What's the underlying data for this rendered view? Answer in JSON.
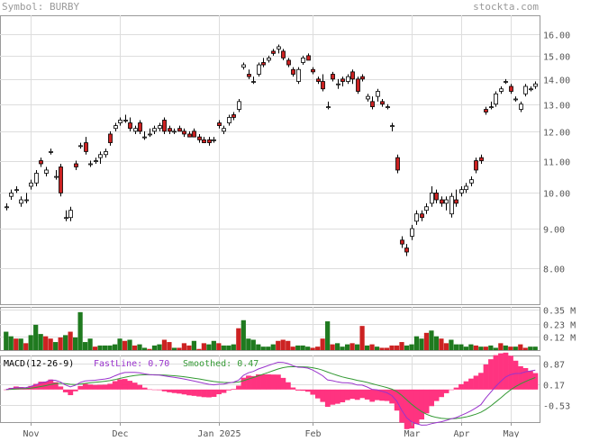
{
  "header": {
    "symbol_text": "Symbol: BURBY",
    "brand_text": "stockta.com"
  },
  "colors": {
    "header_text": "#999999",
    "frame": "#999999",
    "grid": "#dddddd",
    "up_fill": "#ffffff",
    "down_fill": "#cc2222",
    "candle_outline": "#000000",
    "volume_up": "#1f7a1f",
    "volume_down": "#cc2222",
    "fast_line": "#9933cc",
    "smoothed_line": "#339933",
    "histogram": "#ff3380",
    "axis_text": "#555555"
  },
  "chart_data": [
    {
      "type": "candlestick",
      "name": "price",
      "ylim": [
        7.2,
        16.9
      ],
      "y_scale": "log",
      "y_ticks": [
        8.0,
        9.0,
        10.0,
        11.0,
        12.0,
        13.0,
        14.0,
        15.0,
        16.0
      ],
      "y_tick_labels": [
        "8.00",
        "9.00",
        "10.00",
        "11.00",
        "12.00",
        "13.00",
        "14.00",
        "15.00",
        "16.00"
      ],
      "x_labels": [
        "Nov",
        "Dec",
        "Jan 2025",
        "Feb",
        "Mar",
        "Apr",
        "May"
      ],
      "x_label_index": [
        5,
        23,
        43,
        62,
        82,
        92,
        102
      ],
      "grid": true,
      "candles": [
        [
          9.6,
          9.7,
          9.5,
          9.6
        ],
        [
          9.9,
          10.1,
          9.8,
          10.0
        ],
        [
          10.1,
          10.2,
          10.0,
          10.1
        ],
        [
          9.7,
          9.9,
          9.6,
          9.8
        ],
        [
          9.8,
          10.0,
          9.7,
          9.8
        ],
        [
          10.2,
          10.4,
          10.1,
          10.3
        ],
        [
          10.3,
          10.7,
          10.2,
          10.6
        ],
        [
          11.0,
          11.1,
          10.8,
          10.9
        ],
        [
          10.6,
          10.8,
          10.5,
          10.7
        ],
        [
          11.3,
          11.4,
          11.2,
          11.3
        ],
        [
          10.5,
          10.7,
          10.4,
          10.5
        ],
        [
          10.8,
          10.9,
          9.9,
          10.0
        ],
        [
          9.3,
          9.5,
          9.2,
          9.3
        ],
        [
          9.3,
          9.6,
          9.2,
          9.5
        ],
        [
          10.9,
          11.0,
          10.7,
          10.8
        ],
        [
          11.5,
          11.6,
          11.4,
          11.5
        ],
        [
          11.6,
          11.8,
          11.2,
          11.3
        ],
        [
          10.9,
          11.0,
          10.8,
          10.9
        ],
        [
          11.0,
          11.1,
          10.9,
          11.0
        ],
        [
          11.1,
          11.3,
          10.9,
          11.2
        ],
        [
          11.2,
          11.4,
          11.1,
          11.3
        ],
        [
          11.9,
          12.0,
          11.5,
          11.6
        ],
        [
          12.1,
          12.3,
          12.0,
          12.2
        ],
        [
          12.3,
          12.5,
          12.2,
          12.4
        ],
        [
          12.4,
          12.6,
          12.3,
          12.4
        ],
        [
          12.3,
          12.5,
          12.0,
          12.1
        ],
        [
          12.0,
          12.2,
          11.9,
          12.1
        ],
        [
          12.3,
          12.4,
          11.9,
          12.0
        ],
        [
          11.8,
          12.0,
          11.7,
          11.8
        ],
        [
          11.9,
          12.1,
          11.8,
          11.9
        ],
        [
          12.0,
          12.2,
          11.9,
          12.1
        ],
        [
          12.1,
          12.3,
          12.0,
          12.2
        ],
        [
          12.4,
          12.5,
          11.9,
          12.0
        ],
        [
          12.1,
          12.2,
          11.9,
          12.0
        ],
        [
          12.0,
          12.1,
          11.9,
          12.0
        ],
        [
          12.1,
          12.2,
          12.0,
          12.0
        ],
        [
          12.0,
          12.1,
          11.8,
          11.9
        ],
        [
          11.9,
          12.0,
          11.8,
          11.8
        ],
        [
          12.0,
          12.1,
          11.8,
          11.8
        ],
        [
          11.8,
          11.9,
          11.6,
          11.7
        ],
        [
          11.7,
          11.8,
          11.6,
          11.6
        ],
        [
          11.7,
          11.8,
          11.5,
          11.6
        ],
        [
          11.7,
          11.8,
          11.6,
          11.7
        ],
        [
          12.3,
          12.4,
          12.1,
          12.2
        ],
        [
          12.0,
          12.2,
          11.9,
          12.1
        ],
        [
          12.3,
          12.6,
          12.2,
          12.5
        ],
        [
          12.6,
          12.7,
          12.4,
          12.5
        ],
        [
          12.8,
          13.2,
          12.7,
          13.1
        ],
        [
          14.5,
          14.7,
          14.4,
          14.6
        ],
        [
          14.2,
          14.4,
          14.0,
          14.1
        ],
        [
          13.9,
          14.1,
          13.8,
          13.9
        ],
        [
          14.2,
          14.7,
          14.1,
          14.6
        ],
        [
          14.7,
          14.9,
          14.5,
          14.6
        ],
        [
          14.8,
          15.0,
          14.7,
          14.9
        ],
        [
          15.2,
          15.3,
          15.0,
          15.1
        ],
        [
          15.3,
          15.5,
          15.1,
          15.4
        ],
        [
          15.2,
          15.3,
          14.8,
          14.9
        ],
        [
          14.8,
          14.9,
          14.5,
          14.6
        ],
        [
          14.4,
          14.5,
          14.1,
          14.2
        ],
        [
          13.9,
          14.5,
          13.8,
          14.4
        ],
        [
          14.7,
          15.0,
          14.6,
          14.9
        ],
        [
          15.0,
          15.1,
          14.8,
          14.8
        ],
        [
          14.4,
          14.5,
          14.2,
          14.3
        ],
        [
          14.0,
          14.1,
          13.8,
          13.9
        ],
        [
          13.9,
          14.2,
          13.5,
          13.6
        ],
        [
          12.9,
          13.1,
          12.8,
          12.9
        ],
        [
          14.2,
          14.3,
          13.9,
          14.0
        ],
        [
          13.8,
          14.0,
          13.6,
          13.8
        ],
        [
          14.0,
          14.1,
          13.7,
          13.9
        ],
        [
          13.9,
          14.2,
          13.8,
          14.1
        ],
        [
          14.3,
          14.4,
          13.8,
          14.0
        ],
        [
          14.0,
          14.1,
          13.4,
          13.5
        ],
        [
          14.1,
          14.2,
          13.9,
          14.0
        ],
        [
          13.2,
          13.4,
          13.1,
          13.3
        ],
        [
          13.1,
          13.3,
          12.8,
          12.9
        ],
        [
          13.3,
          13.6,
          13.1,
          13.5
        ],
        [
          13.1,
          13.2,
          12.9,
          13.0
        ],
        [
          12.9,
          13.0,
          12.8,
          12.9
        ],
        [
          12.2,
          12.3,
          12.0,
          12.2
        ],
        [
          11.1,
          11.2,
          10.6,
          10.7
        ],
        [
          8.7,
          8.8,
          8.5,
          8.6
        ],
        [
          8.5,
          8.6,
          8.3,
          8.4
        ],
        [
          8.8,
          9.1,
          8.7,
          9.0
        ],
        [
          9.2,
          9.5,
          9.1,
          9.4
        ],
        [
          9.4,
          9.5,
          9.2,
          9.3
        ],
        [
          9.5,
          9.7,
          9.4,
          9.6
        ],
        [
          9.7,
          10.2,
          9.6,
          10.0
        ],
        [
          10.0,
          10.1,
          9.7,
          9.8
        ],
        [
          9.8,
          9.9,
          9.6,
          9.7
        ],
        [
          9.7,
          9.9,
          9.5,
          9.8
        ],
        [
          9.4,
          10.0,
          9.3,
          9.9
        ],
        [
          9.8,
          10.1,
          9.6,
          9.7
        ],
        [
          10.0,
          10.2,
          9.9,
          10.1
        ],
        [
          10.1,
          10.3,
          10.0,
          10.2
        ],
        [
          10.3,
          10.5,
          10.2,
          10.4
        ],
        [
          11.0,
          11.1,
          10.6,
          10.7
        ],
        [
          11.1,
          11.2,
          10.9,
          11.0
        ],
        [
          12.8,
          12.9,
          12.6,
          12.7
        ],
        [
          12.9,
          13.1,
          12.8,
          12.9
        ],
        [
          13.0,
          13.5,
          12.9,
          13.4
        ],
        [
          13.5,
          13.7,
          13.4,
          13.6
        ],
        [
          13.9,
          14.0,
          13.8,
          13.9
        ],
        [
          13.7,
          13.8,
          13.4,
          13.5
        ],
        [
          13.2,
          13.3,
          13.1,
          13.2
        ],
        [
          12.8,
          13.1,
          12.7,
          13.0
        ],
        [
          13.4,
          13.8,
          13.3,
          13.7
        ],
        [
          13.6,
          13.7,
          13.5,
          13.6
        ],
        [
          13.7,
          13.9,
          13.6,
          13.8
        ]
      ]
    },
    {
      "type": "bar",
      "name": "volume",
      "ylim": [
        0,
        0.36
      ],
      "y_ticks": [
        0.12,
        0.23,
        0.35
      ],
      "y_tick_labels": [
        "0.12 M",
        "0.23 M",
        "0.35 M"
      ],
      "values": [
        0.16,
        0.12,
        0.1,
        0.1,
        0.06,
        0.13,
        0.22,
        0.14,
        0.12,
        0.1,
        0.07,
        0.11,
        0.13,
        0.16,
        0.11,
        0.33,
        0.07,
        0.1,
        0.03,
        0.04,
        0.04,
        0.04,
        0.05,
        0.1,
        0.08,
        0.09,
        0.04,
        0.05,
        0.02,
        0.01,
        0.04,
        0.05,
        0.09,
        0.07,
        0.02,
        0.02,
        0.06,
        0.04,
        0.08,
        0.01,
        0.06,
        0.05,
        0.08,
        0.06,
        0.04,
        0.04,
        0.05,
        0.19,
        0.26,
        0.1,
        0.09,
        0.05,
        0.03,
        0.03,
        0.05,
        0.08,
        0.09,
        0.08,
        0.03,
        0.04,
        0.04,
        0.03,
        0.02,
        0.03,
        0.1,
        0.25,
        0.05,
        0.06,
        0.03,
        0.05,
        0.06,
        0.05,
        0.21,
        0.04,
        0.05,
        0.03,
        0.02,
        0.02,
        0.04,
        0.04,
        0.07,
        0.04,
        0.05,
        0.12,
        0.1,
        0.15,
        0.17,
        0.12,
        0.1,
        0.06,
        0.09,
        0.05,
        0.05,
        0.03,
        0.05,
        0.04,
        0.03,
        0.03,
        0.04,
        0.02,
        0.06,
        0.04,
        0.03,
        0.03,
        0.05,
        0.02,
        0.03,
        0.03
      ],
      "up": [
        true,
        true,
        false,
        true,
        false,
        true,
        true,
        true,
        false,
        false,
        true,
        false,
        true,
        false,
        true,
        true,
        true,
        true,
        false,
        true,
        true,
        true,
        true,
        true,
        false,
        true,
        false,
        true,
        true,
        false,
        true,
        true,
        false,
        false,
        true,
        false,
        false,
        false,
        true,
        false,
        false,
        true,
        true,
        false,
        true,
        true,
        true,
        false,
        true,
        true,
        true,
        true,
        true,
        true,
        true,
        false,
        false,
        false,
        false,
        true,
        true,
        true,
        false,
        false,
        false,
        true,
        false,
        true,
        true,
        true,
        false,
        true,
        false,
        true,
        false,
        true,
        false,
        false,
        false,
        false,
        false,
        true,
        true,
        true,
        true,
        false,
        true,
        true,
        false,
        false,
        true,
        true,
        true,
        true,
        true,
        false,
        true,
        false,
        true,
        true,
        false,
        true,
        false,
        true,
        false,
        false,
        true,
        true
      ]
    },
    {
      "type": "line",
      "name": "macd",
      "title": "MACD(12-26-9)",
      "legend": [
        {
          "label": "FastLine: 0.70",
          "color": "#9933cc"
        },
        {
          "label": "Smoothed: 0.47",
          "color": "#339933"
        }
      ],
      "ylim": [
        -1.1,
        1.15
      ],
      "y_ticks": [
        -0.53,
        0.17,
        0.87
      ],
      "y_tick_labels": [
        "-0.53",
        "0.17",
        "0.87"
      ]
    }
  ]
}
